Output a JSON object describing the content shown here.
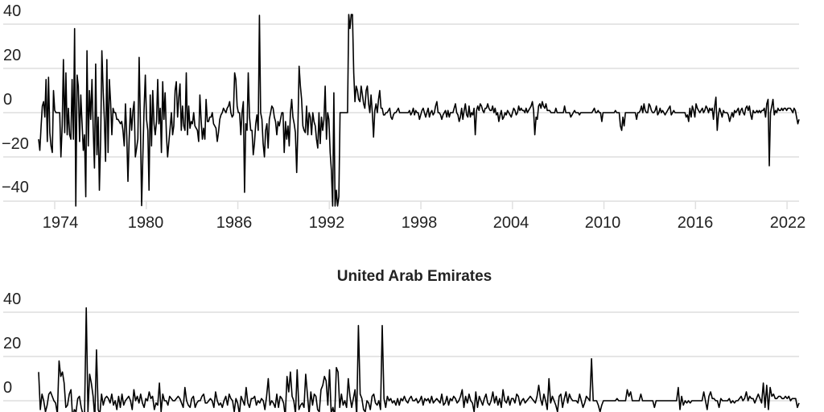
{
  "chart_data": [
    {
      "type": "line",
      "title": "",
      "xlabel": "",
      "ylabel": "",
      "x_start": 1973.0,
      "x_step": 0.25,
      "ylim": [
        -45,
        45
      ],
      "yticks": [
        40,
        20,
        0,
        -20,
        -40
      ],
      "ytick_labels": [
        "40",
        "20",
        "0",
        "−20",
        "−40"
      ],
      "xticks": [
        1974,
        1980,
        1986,
        1992,
        1998,
        2004,
        2010,
        2016,
        2022
      ],
      "xtick_labels": [
        "1974",
        "1980",
        "1986",
        "1992",
        "1998",
        "2004",
        "2010",
        "2016",
        "2022"
      ],
      "grid": true,
      "series": [
        {
          "name": "series",
          "values": [
            -12,
            -17,
            -6,
            3,
            5,
            -2,
            15,
            -13,
            16,
            -9,
            -15,
            -18,
            10,
            1,
            0,
            0,
            0,
            0,
            -20,
            -6,
            24,
            -9,
            18,
            -10,
            2,
            -10,
            -12,
            15,
            -12,
            38,
            -45,
            17,
            12,
            -13,
            8,
            -5,
            -17,
            -10,
            -38,
            28,
            -15,
            10,
            -3,
            15,
            -7,
            -25,
            22,
            -19,
            -2,
            -35,
            -12,
            28,
            10,
            -3,
            -22,
            24,
            -18,
            15,
            5,
            -10,
            2,
            0,
            0,
            -3,
            -3,
            -4,
            -5,
            -4,
            -8,
            -15,
            4,
            -10,
            -31,
            -12,
            2,
            -8,
            1,
            5,
            -20,
            -16,
            -12,
            25,
            -3,
            -42,
            -20,
            1,
            17,
            -3,
            -8,
            -35,
            8,
            -15,
            10,
            -5,
            -10,
            -4,
            15,
            -5,
            2,
            -18,
            14,
            -3,
            9,
            -10,
            -20,
            -13,
            -7,
            0,
            -10,
            -6,
            10,
            14,
            -2,
            7,
            13,
            -8,
            3,
            -6,
            -8,
            18,
            -10,
            3,
            -7,
            -4,
            -5,
            0,
            -6,
            -7,
            -8,
            -13,
            8,
            -3,
            -12,
            -7,
            -12,
            6,
            -4,
            -4,
            -2,
            -2,
            0,
            -5,
            -6,
            -7,
            -13,
            -9,
            -3,
            -1,
            0,
            2,
            1,
            0,
            2,
            3,
            5,
            0,
            -2,
            -1,
            18,
            15,
            3,
            0,
            0,
            -10,
            0,
            5,
            -36,
            -5,
            -8,
            18,
            -2,
            -8,
            -8,
            -19,
            -14,
            -5,
            -1,
            -8,
            44,
            0,
            -3,
            -14,
            -20,
            -8,
            -5,
            -16,
            -3,
            0,
            3,
            2,
            -2,
            -4,
            -10,
            -4,
            -6,
            -3,
            0,
            0,
            -18,
            -4,
            -12,
            -6,
            -15,
            0,
            6,
            -2,
            -5,
            -9,
            -27,
            -7,
            21,
            12,
            6,
            -6,
            -8,
            -9,
            3,
            -10,
            0,
            -2,
            -10,
            0,
            -4,
            -6,
            -12,
            -16,
            0,
            -14,
            -2,
            -8,
            -3,
            12,
            -12,
            0,
            -3,
            -18,
            -26,
            -43,
            9,
            -45,
            -35,
            -45,
            -38,
            0,
            0,
            0,
            0,
            0,
            0,
            0,
            45,
            38,
            45,
            45,
            18,
            5,
            12,
            10,
            6,
            5,
            12,
            8,
            4,
            2,
            10,
            12,
            4,
            0,
            8,
            0,
            -11,
            1,
            4,
            0,
            6,
            10,
            2,
            2,
            -1,
            -1,
            0,
            0,
            1,
            2,
            -2,
            -3,
            -1,
            0,
            0,
            1,
            2,
            0,
            0,
            0,
            0,
            0,
            0,
            0,
            0,
            1,
            -1,
            0,
            2,
            -1,
            1,
            0,
            0,
            -3,
            -1,
            1,
            2,
            0,
            -2,
            0,
            2,
            -2,
            0,
            1,
            -1,
            0,
            3,
            5,
            0,
            0,
            -1,
            -3,
            -1,
            0,
            1,
            -2,
            1,
            -2,
            0,
            0,
            0,
            2,
            4,
            0,
            -1,
            -4,
            -2,
            2,
            -3,
            1,
            4,
            -1,
            -2,
            3,
            -2,
            0,
            -1,
            2,
            -10,
            1,
            3,
            1,
            4,
            3,
            1,
            0,
            2,
            2,
            4,
            2,
            1,
            1,
            3,
            0,
            2,
            -1,
            0,
            -4,
            -1,
            1,
            -3,
            -2,
            0,
            -1,
            1,
            0,
            -1,
            -2,
            0,
            2,
            1,
            -1,
            0,
            3,
            1,
            2,
            1,
            1,
            0,
            2,
            0,
            1,
            2,
            3,
            5,
            1,
            -10,
            -2,
            -3,
            3,
            4,
            2,
            5,
            3,
            2,
            4,
            1,
            1,
            1,
            0,
            0,
            0,
            0,
            2,
            0,
            0,
            0,
            0,
            0,
            0,
            3,
            0,
            0,
            0,
            0,
            -2,
            -1,
            0,
            1,
            0,
            0,
            0,
            -1,
            0,
            0,
            0,
            0,
            0,
            0,
            0,
            0,
            0,
            0,
            1,
            2,
            0,
            0,
            1,
            0,
            0,
            -4,
            0,
            0,
            0,
            0,
            0,
            0,
            0,
            0,
            0,
            0,
            1,
            0,
            0,
            0,
            -6,
            -8,
            -2,
            -6,
            0,
            0,
            0,
            0,
            0,
            0,
            0,
            0,
            0,
            -3,
            0,
            0,
            1,
            3,
            0,
            4,
            1,
            0,
            0,
            4,
            3,
            1,
            0,
            0,
            1,
            3,
            -1,
            0,
            2,
            0,
            1,
            0,
            -1,
            0,
            1,
            2,
            3,
            -1,
            0,
            1,
            0,
            0,
            0,
            0,
            0,
            0,
            0,
            0,
            0,
            -2,
            -1,
            -4,
            2,
            -2,
            3,
            1,
            -2,
            4,
            2,
            1,
            0,
            1,
            2,
            0,
            1,
            3,
            2,
            0,
            2,
            1,
            2,
            -3,
            3,
            7,
            -8,
            -1,
            2,
            0,
            -2,
            1,
            0,
            0,
            0,
            -1,
            -4,
            -2,
            0,
            -2,
            1,
            0,
            1,
            2,
            -1,
            1,
            2,
            0,
            -1,
            2,
            3,
            1,
            3,
            -1,
            -3,
            1,
            0,
            0,
            1,
            0,
            1,
            0,
            1,
            1,
            2,
            -2,
            4,
            6,
            -24,
            0,
            3,
            6,
            -1,
            1,
            0,
            2,
            1,
            1,
            2,
            1,
            2,
            2,
            1,
            2,
            2,
            2,
            1,
            0,
            2,
            1,
            -2,
            -5,
            -3
          ]
        }
      ]
    },
    {
      "type": "line",
      "title": "United Arab Emirates",
      "xlabel": "",
      "ylabel": "",
      "x_start": 1973.0,
      "x_step": 0.25,
      "ylim": [
        -5,
        45
      ],
      "yticks": [
        40,
        20,
        0
      ],
      "ytick_labels": [
        "40",
        "20",
        "0"
      ],
      "grid": true,
      "series": [
        {
          "name": "United Arab Emirates",
          "values": [
            13,
            -4,
            3,
            0,
            -5,
            -2,
            3,
            4,
            2,
            0,
            -1,
            -6,
            18,
            11,
            13,
            8,
            -3,
            -2,
            3,
            5,
            -8,
            -4,
            -5,
            1,
            2,
            -3,
            -6,
            -5,
            42,
            -5,
            12,
            8,
            2,
            -8,
            23,
            -4,
            -6,
            3,
            -2,
            1,
            2,
            1,
            -1,
            3,
            -2,
            0,
            -4,
            2,
            -3,
            3,
            -2,
            0,
            1,
            2,
            0,
            -4,
            5,
            0,
            2,
            -1,
            3,
            -1,
            -3,
            1,
            0,
            4,
            1,
            2,
            -4,
            -1,
            -2,
            8,
            -5,
            3,
            0,
            0,
            -2,
            2,
            1,
            0,
            0,
            1,
            2,
            1,
            -1,
            -3,
            6,
            0,
            -2,
            -3,
            1,
            2,
            -3,
            -1,
            0,
            0,
            2,
            3,
            -1,
            -1,
            0,
            1,
            0,
            -3,
            4,
            0,
            -2,
            -1,
            -3,
            0,
            2,
            -2,
            3,
            1,
            0,
            -5,
            1,
            -1,
            -6,
            2,
            0,
            -2,
            6,
            -1,
            -3,
            1,
            1,
            2,
            -2,
            0,
            -1,
            1,
            0,
            -4,
            2,
            10,
            -2,
            0,
            -1,
            -3,
            3,
            -3,
            2,
            1,
            -1,
            -7,
            11,
            4,
            13,
            2,
            0,
            -6,
            14,
            -4,
            -2,
            -1,
            -3,
            12,
            3,
            -6,
            4,
            -2,
            3,
            2,
            -4,
            -5,
            5,
            7,
            11,
            9,
            -2,
            14,
            -6,
            -3,
            -7,
            15,
            13,
            -3,
            3,
            -2,
            0,
            -3,
            10,
            2,
            -3,
            1,
            5,
            -7,
            34,
            3,
            1,
            -4,
            -5,
            0,
            -1,
            -4,
            2,
            3,
            -1,
            -2,
            0,
            -4,
            34,
            1,
            -3,
            2,
            0,
            1,
            -1,
            0,
            -2,
            1,
            -2,
            1,
            0,
            2,
            0,
            -1,
            1,
            2,
            0,
            0,
            1,
            -1,
            0,
            2,
            -2,
            1,
            0,
            1,
            -1,
            2,
            -1,
            0,
            1,
            0,
            -1,
            3,
            -2,
            -1,
            2,
            -2,
            1,
            0,
            2,
            1,
            -1,
            0,
            2,
            5,
            -3,
            2,
            -1,
            3,
            0,
            -1,
            -5,
            4,
            -3,
            2,
            0,
            -2,
            1,
            3,
            -1,
            -2,
            0,
            4,
            -1,
            2,
            -2,
            1,
            -3,
            5,
            0,
            -1,
            2,
            -2,
            1,
            1,
            -1,
            3,
            2,
            -2,
            0,
            1,
            -1,
            0,
            1,
            2,
            1,
            0,
            -1,
            2,
            7,
            1,
            -2,
            3,
            0,
            -4,
            10,
            -1,
            2,
            0,
            -2,
            -5,
            2,
            3,
            -3,
            1,
            4,
            -1,
            3,
            1,
            0,
            0,
            0,
            -1,
            3,
            0,
            -3,
            -1,
            2,
            1,
            0,
            19,
            0,
            0,
            0,
            -2,
            -5,
            -2,
            0,
            0,
            0,
            0,
            0,
            0,
            0,
            0,
            1,
            0,
            0,
            0,
            0,
            0,
            5,
            2,
            4,
            0,
            0,
            0,
            0,
            0,
            3,
            0,
            0,
            0,
            0,
            0,
            0,
            0,
            -3,
            0,
            0,
            0,
            0,
            0,
            0,
            0,
            0,
            0,
            0,
            0,
            0,
            0,
            6,
            -4,
            2,
            -2,
            0,
            -1,
            0,
            -1,
            0,
            0,
            0,
            0,
            0,
            0,
            0,
            4,
            0,
            -4,
            2,
            4,
            1,
            1,
            0,
            0,
            -3,
            1,
            0,
            0,
            0,
            0,
            1,
            -1,
            0,
            -1,
            0,
            0,
            1,
            2,
            0,
            1,
            4,
            0,
            2,
            1,
            1,
            -1,
            1,
            3,
            1,
            -1,
            8,
            -3,
            7,
            -4,
            6,
            2,
            3,
            1,
            1,
            2,
            2,
            1,
            1,
            2,
            1,
            2,
            0,
            1,
            1,
            1,
            -3,
            -1
          ]
        }
      ]
    }
  ]
}
